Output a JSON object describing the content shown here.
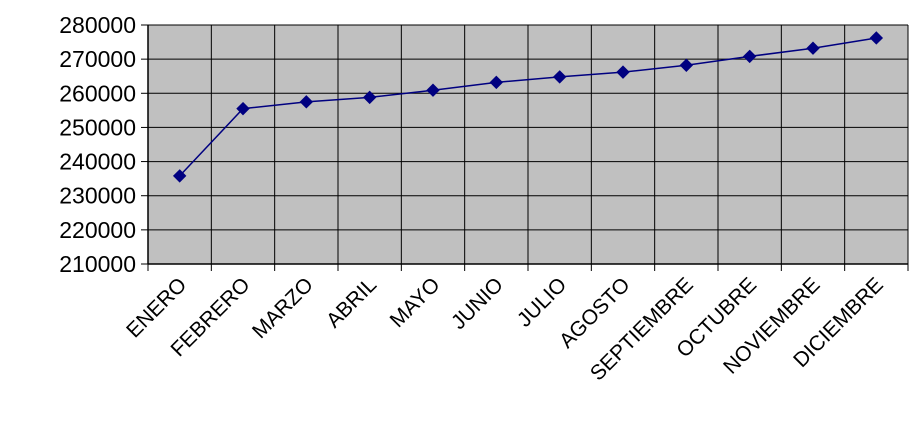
{
  "chart_data": {
    "type": "line",
    "categories": [
      "ENERO",
      "FEBRERO",
      "MARZO",
      "ABRIL",
      "MAYO",
      "JUNIO",
      "JULIO",
      "AGOSTO",
      "SEPTIEMBRE",
      "OCTUBRE",
      "NOVIEMBRE",
      "DICIEMBRE"
    ],
    "series": [
      {
        "values": [
          235800,
          255500,
          257500,
          258800,
          260900,
          263200,
          264800,
          266200,
          268200,
          270800,
          273200,
          276200
        ]
      }
    ],
    "title": "",
    "xlabel": "",
    "ylabel": "",
    "ylim": [
      210000,
      280000
    ],
    "yticks": [
      210000,
      220000,
      230000,
      240000,
      250000,
      260000,
      270000,
      280000
    ],
    "grid": true,
    "legend": "none",
    "colors": {
      "plot_background": "#c0c0c0",
      "gridline": "#000000",
      "series_line": "#000080",
      "marker": "#000080"
    },
    "marker": "diamond"
  }
}
